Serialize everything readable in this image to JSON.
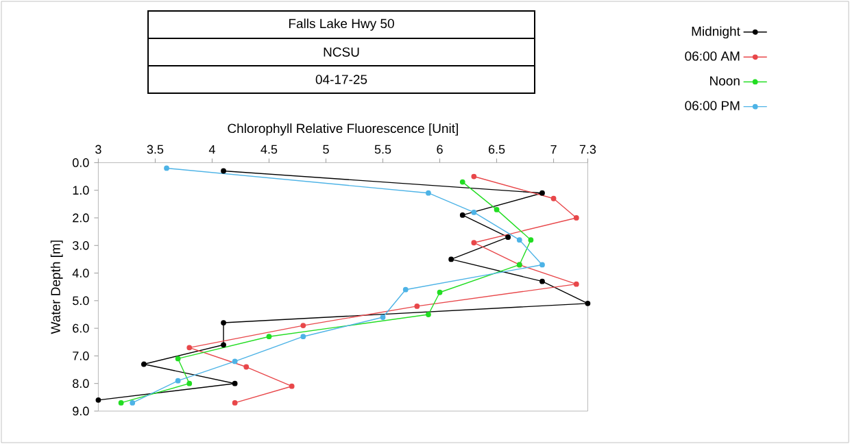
{
  "chart_data": {
    "type": "line",
    "title": "Falls Lake Hwy 50",
    "subtitle": "NCSU",
    "annotations": [
      "04-17-25"
    ],
    "xlabel": "Chlorophyll Relative Fluorescence [Unit]",
    "ylabel": "Water Depth [m]",
    "xlim": [
      3,
      7.3
    ],
    "xticks": [
      3,
      3.5,
      4,
      4.5,
      5,
      5.5,
      6,
      6.5,
      7,
      7.3
    ],
    "ylim": [
      9,
      0
    ],
    "yticks": [
      {
        "value": 0,
        "label": "0.0"
      },
      {
        "value": 1,
        "label": "1.0"
      },
      {
        "value": 2,
        "label": "2.0"
      },
      {
        "value": 3,
        "label": "3.0"
      },
      {
        "value": 4,
        "label": "4.0"
      },
      {
        "value": 5,
        "label": "5.0"
      },
      {
        "value": 6,
        "label": "6.0"
      },
      {
        "value": 7,
        "label": "7.0"
      },
      {
        "value": 8,
        "label": "8.0"
      },
      {
        "value": 9,
        "label": "9.0"
      }
    ],
    "marker": "circle",
    "line_style": "solid",
    "legend": "top right",
    "grid": false,
    "series": [
      {
        "name": "Midnight",
        "color": "#000000",
        "x": [
          4.1,
          6.9,
          6.2,
          6.6,
          6.1,
          6.9,
          7.3,
          4.1,
          4.1,
          3.4,
          4.2,
          3.0
        ],
        "values": [
          0.3,
          1.1,
          1.9,
          2.7,
          3.5,
          4.3,
          5.1,
          5.8,
          6.6,
          7.3,
          8.0,
          8.6
        ]
      },
      {
        "name": "06:00 AM",
        "color": "#e8474a",
        "x": [
          6.3,
          7.0,
          7.2,
          6.3,
          6.7,
          7.2,
          5.8,
          4.8,
          3.8,
          4.3,
          4.7,
          4.2
        ],
        "values": [
          0.5,
          1.3,
          2.0,
          2.9,
          3.7,
          4.4,
          5.2,
          5.9,
          6.7,
          7.4,
          8.1,
          8.7
        ]
      },
      {
        "name": "Noon",
        "color": "#22dd22",
        "x": [
          6.2,
          6.5,
          6.8,
          6.7,
          6.0,
          5.9,
          4.5,
          3.7,
          3.8,
          3.2
        ],
        "values": [
          0.7,
          1.7,
          2.8,
          3.7,
          4.7,
          5.5,
          6.3,
          7.1,
          8.0,
          8.7
        ]
      },
      {
        "name": "06:00 PM",
        "color": "#4db3e6",
        "x": [
          3.6,
          5.9,
          6.3,
          6.7,
          6.9,
          5.7,
          5.5,
          4.8,
          4.2,
          3.7,
          3.3
        ],
        "values": [
          0.2,
          1.1,
          1.8,
          2.8,
          3.7,
          4.6,
          5.6,
          6.3,
          7.2,
          7.9,
          8.7
        ]
      }
    ]
  }
}
